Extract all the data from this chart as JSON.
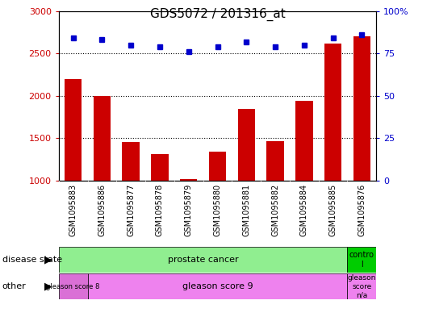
{
  "title": "GDS5072 / 201316_at",
  "samples": [
    "GSM1095883",
    "GSM1095886",
    "GSM1095877",
    "GSM1095878",
    "GSM1095879",
    "GSM1095880",
    "GSM1095881",
    "GSM1095882",
    "GSM1095884",
    "GSM1095885",
    "GSM1095876"
  ],
  "counts": [
    2200,
    2000,
    1460,
    1310,
    1020,
    1340,
    1850,
    1470,
    1940,
    2620,
    2700
  ],
  "percentile_ranks": [
    84,
    83,
    80,
    79,
    76,
    79,
    82,
    79,
    80,
    84,
    86
  ],
  "ylim_left": [
    1000,
    3000
  ],
  "ylim_right": [
    0,
    100
  ],
  "yticks_left": [
    1000,
    1500,
    2000,
    2500,
    3000
  ],
  "yticks_right": [
    0,
    25,
    50,
    75,
    100
  ],
  "bar_color": "#cc0000",
  "dot_color": "#0000cc",
  "bg_color": "#ffffff",
  "plot_bg_color": "#ffffff",
  "legend_count_color": "#cc0000",
  "legend_dot_color": "#0000cc",
  "gleason8_color": "#da70d6",
  "gleason9_color": "#ee82ee",
  "prostate_color": "#90EE90",
  "control_color": "#00cc00"
}
